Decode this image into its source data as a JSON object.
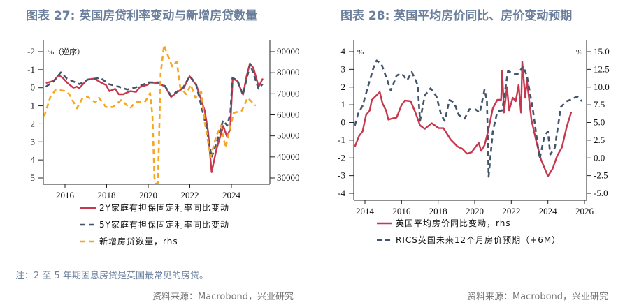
{
  "left": {
    "title": "图表 27: 英国房贷利率变动与新增房贷数量",
    "unit_label": "%（逆序）",
    "note": "注：2 至 5 年期固息房贷是英国最常见的房贷。",
    "source": "资料来源：Macrobond，兴业研究"
  },
  "right": {
    "title": "图表 28: 英国平均房价同比、房价变动预期",
    "unit_left": "%",
    "unit_right": "%",
    "source": "资料来源：Macrobond，兴业研究"
  },
  "chart_data": [
    {
      "type": "line",
      "title": "图表 27: 英国房贷利率变动与新增房贷数量",
      "ylabel": "%（逆序）",
      "y_inverted": true,
      "ylim": [
        -2,
        5
      ],
      "y2lim": [
        30000,
        90000
      ],
      "xlim": [
        2015,
        2025.9
      ],
      "xticks": [
        "2016",
        "2018",
        "2020",
        "2022",
        "2024"
      ],
      "yticks": [
        "-2",
        "-1",
        "0",
        "1",
        "2",
        "3",
        "4",
        "5"
      ],
      "y2ticks": [
        "30000",
        "40000",
        "50000",
        "60000",
        "70000",
        "80000",
        "90000"
      ],
      "legend": "bottom",
      "series": [
        {
          "name": "2Y家庭有担保固定利率同比变动",
          "axis": "left",
          "color": "#c8384d",
          "dash": false,
          "points": [
            [
              2015.08,
              -0.26
            ],
            [
              2015.45,
              -0.38
            ],
            [
              2015.7,
              -0.7
            ],
            [
              2015.9,
              -0.54
            ],
            [
              2016.12,
              -0.26
            ],
            [
              2016.4,
              0
            ],
            [
              2016.57,
              -0.06
            ],
            [
              2016.68,
              0.03
            ],
            [
              2017.07,
              -0.45
            ],
            [
              2017.4,
              -0.51
            ],
            [
              2017.74,
              -0.28
            ],
            [
              2017.97,
              -0.15
            ],
            [
              2018.13,
              0.19
            ],
            [
              2018.41,
              0.06
            ],
            [
              2018.58,
              0.36
            ],
            [
              2018.8,
              0.36
            ],
            [
              2019.14,
              0.19
            ],
            [
              2019.42,
              0.23
            ],
            [
              2019.59,
              -0.03
            ],
            [
              2019.98,
              -0.17
            ],
            [
              2020.09,
              -0.29
            ],
            [
              2020.48,
              -0.26
            ],
            [
              2020.82,
              -0.06
            ],
            [
              2021.1,
              0.51
            ],
            [
              2021.37,
              0.26
            ],
            [
              2021.71,
              0
            ],
            [
              2021.99,
              -0.64
            ],
            [
              2022.32,
              -0.13
            ],
            [
              2022.72,
              1.28
            ],
            [
              2022.88,
              2.44
            ],
            [
              2023.05,
              4.68
            ],
            [
              2023.27,
              3.46
            ],
            [
              2023.61,
              2.12
            ],
            [
              2023.78,
              2.69
            ],
            [
              2023.94,
              2.31
            ],
            [
              2024.06,
              -0.51
            ],
            [
              2024.28,
              -0.38
            ],
            [
              2024.56,
              0.38
            ],
            [
              2024.73,
              -0.64
            ],
            [
              2024.89,
              -1.35
            ],
            [
              2025.06,
              -1.09
            ],
            [
              2025.31,
              -0.06
            ],
            [
              2025.51,
              -0.51
            ]
          ]
        },
        {
          "name": "5Y家庭有担保固定利率同比变动",
          "axis": "left",
          "color": "#44546a",
          "dash": true,
          "points": [
            [
              2015.08,
              -0.06
            ],
            [
              2015.45,
              -0.35
            ],
            [
              2015.8,
              -0.85
            ],
            [
              2016.1,
              -0.5
            ],
            [
              2016.4,
              -0.35
            ],
            [
              2016.7,
              -0.2
            ],
            [
              2017.1,
              -0.45
            ],
            [
              2017.7,
              -0.55
            ],
            [
              2018.1,
              -0.2
            ],
            [
              2018.6,
              -0.05
            ],
            [
              2019.0,
              0.1
            ],
            [
              2019.5,
              -0.05
            ],
            [
              2020.0,
              -0.3
            ],
            [
              2020.5,
              -0.3
            ],
            [
              2020.8,
              -0.1
            ],
            [
              2021.1,
              0.45
            ],
            [
              2021.4,
              0.2
            ],
            [
              2021.7,
              -0.05
            ],
            [
              2022.0,
              -0.65
            ],
            [
              2022.3,
              -0.2
            ],
            [
              2022.8,
              2.2
            ],
            [
              2023.05,
              3.85
            ],
            [
              2023.3,
              3.0
            ],
            [
              2023.6,
              1.8
            ],
            [
              2023.8,
              2.1
            ],
            [
              2023.95,
              1.4
            ],
            [
              2024.05,
              -0.55
            ],
            [
              2024.3,
              -0.4
            ],
            [
              2024.55,
              0.4
            ],
            [
              2024.9,
              -1.3
            ],
            [
              2025.3,
              0.05
            ],
            [
              2025.5,
              -0.2
            ]
          ]
        },
        {
          "name": "新增房贷数量，rhs",
          "axis": "right",
          "color": "#f5a623",
          "dash": true,
          "points": [
            [
              2015.0,
              59300
            ],
            [
              2015.3,
              68700
            ],
            [
              2015.56,
              72000
            ],
            [
              2015.96,
              71400
            ],
            [
              2016.2,
              69800
            ],
            [
              2016.57,
              63100
            ],
            [
              2016.85,
              68100
            ],
            [
              2017.07,
              68700
            ],
            [
              2017.46,
              65900
            ],
            [
              2017.63,
              68100
            ],
            [
              2017.97,
              63700
            ],
            [
              2018.3,
              63700
            ],
            [
              2018.7,
              67000
            ],
            [
              2019.14,
              63100
            ],
            [
              2019.36,
              65900
            ],
            [
              2019.87,
              66500
            ],
            [
              2020.09,
              70300
            ],
            [
              2020.2,
              59800
            ],
            [
              2020.3,
              30000
            ],
            [
              2020.46,
              25000
            ],
            [
              2020.6,
              79700
            ],
            [
              2020.76,
              93000
            ],
            [
              2021.15,
              83000
            ],
            [
              2021.37,
              85200
            ],
            [
              2021.54,
              73100
            ],
            [
              2021.82,
              69800
            ],
            [
              2022.05,
              74200
            ],
            [
              2022.27,
              68100
            ],
            [
              2022.55,
              70900
            ],
            [
              2022.72,
              56500
            ],
            [
              2023.0,
              40000
            ],
            [
              2023.27,
              49900
            ],
            [
              2023.5,
              54900
            ],
            [
              2023.72,
              44400
            ],
            [
              2023.89,
              52100
            ],
            [
              2024.11,
              60900
            ],
            [
              2024.5,
              62000
            ],
            [
              2024.78,
              68100
            ],
            [
              2025.17,
              64300
            ]
          ]
        }
      ]
    },
    {
      "type": "line",
      "title": "图表 28: 英国平均房价同比、房价变动预期",
      "ylabel": "%",
      "y2label": "%",
      "ylim": [
        -4,
        4
      ],
      "y2lim": [
        -5,
        15
      ],
      "xlim": [
        2013.4,
        2026.1
      ],
      "xticks": [
        "2014",
        "2016",
        "2018",
        "2020",
        "2022",
        "2024",
        "2026"
      ],
      "yticks": [
        "-4",
        "-3",
        "-2",
        "-1",
        "0",
        "1",
        "2",
        "3",
        "4"
      ],
      "y2ticks": [
        "-5.0",
        "-2.5",
        "0.0",
        "2.5",
        "5.0",
        "7.5",
        "10.0",
        "12.5",
        "15.0"
      ],
      "legend": "bottom",
      "series": [
        {
          "name": "英国平均房价同比变动，rhs",
          "axis": "right",
          "color": "#c8384d",
          "dash": false,
          "points": [
            [
              2013.45,
              1.6
            ],
            [
              2013.68,
              3.1
            ],
            [
              2013.87,
              3.75
            ],
            [
              2014.06,
              6.05
            ],
            [
              2014.26,
              6.7
            ],
            [
              2014.38,
              8.2
            ],
            [
              2014.58,
              8.7
            ],
            [
              2014.81,
              9.3
            ],
            [
              2014.96,
              7.7
            ],
            [
              2015.15,
              6.7
            ],
            [
              2015.28,
              5.4
            ],
            [
              2015.54,
              5.6
            ],
            [
              2015.73,
              5.7
            ],
            [
              2015.99,
              7.4
            ],
            [
              2016.18,
              8.1
            ],
            [
              2016.5,
              8.0
            ],
            [
              2016.76,
              6.4
            ],
            [
              2017.01,
              4.6
            ],
            [
              2017.27,
              4.1
            ],
            [
              2017.65,
              4.9
            ],
            [
              2018.04,
              4.2
            ],
            [
              2018.29,
              4.2
            ],
            [
              2018.68,
              2.6
            ],
            [
              2019.06,
              1.6
            ],
            [
              2019.32,
              1.3
            ],
            [
              2019.58,
              0.6
            ],
            [
              2019.83,
              0.8
            ],
            [
              2020.03,
              1.5
            ],
            [
              2020.22,
              2.1
            ],
            [
              2020.35,
              1.0
            ],
            [
              2020.54,
              1.8
            ],
            [
              2020.73,
              3.75
            ],
            [
              2020.99,
              7.0
            ],
            [
              2021.24,
              8.2
            ],
            [
              2021.44,
              8.2
            ],
            [
              2021.5,
              12.3
            ],
            [
              2021.6,
              6.4
            ],
            [
              2021.76,
              10.0
            ],
            [
              2021.88,
              6.7
            ],
            [
              2022.08,
              8.5
            ],
            [
              2022.24,
              8.0
            ],
            [
              2022.4,
              10.3
            ],
            [
              2022.53,
              6.4
            ],
            [
              2022.6,
              13.6
            ],
            [
              2022.76,
              8.5
            ],
            [
              2022.85,
              11.0
            ],
            [
              2023.1,
              5.4
            ],
            [
              2023.36,
              2.4
            ],
            [
              2023.62,
              -0.2
            ],
            [
              2024.0,
              -2.6
            ],
            [
              2024.26,
              -1.5
            ],
            [
              2024.51,
              0.3
            ],
            [
              2024.77,
              1.5
            ],
            [
              2025.03,
              4.4
            ],
            [
              2025.28,
              6.5
            ]
          ]
        },
        {
          "name": "RICS英国未来12个月房价预期（+6M）",
          "axis": "left",
          "color": "#44546a",
          "dash": true,
          "points": [
            [
              2013.45,
              -0.17
            ],
            [
              2013.62,
              0.49
            ],
            [
              2013.87,
              0.94
            ],
            [
              2014.19,
              2.12
            ],
            [
              2014.45,
              3.04
            ],
            [
              2014.64,
              3.5
            ],
            [
              2014.9,
              3.3
            ],
            [
              2015.22,
              2.39
            ],
            [
              2015.41,
              1.8
            ],
            [
              2015.73,
              2.65
            ],
            [
              2015.99,
              2.78
            ],
            [
              2016.31,
              2.39
            ],
            [
              2016.56,
              2.85
            ],
            [
              2016.88,
              2.12
            ],
            [
              2017.01,
              0.09
            ],
            [
              2017.27,
              1.53
            ],
            [
              2017.59,
              1.93
            ],
            [
              2017.91,
              1.47
            ],
            [
              2018.17,
              0.42
            ],
            [
              2018.36,
              0.09
            ],
            [
              2018.62,
              1.27
            ],
            [
              2018.87,
              1.14
            ],
            [
              2019.13,
              0.42
            ],
            [
              2019.45,
              0.22
            ],
            [
              2019.71,
              0.75
            ],
            [
              2020.03,
              0.75
            ],
            [
              2020.28,
              0.55
            ],
            [
              2020.54,
              1.86
            ],
            [
              2020.67,
              1.2
            ],
            [
              2020.76,
              -3.06
            ],
            [
              2020.99,
              -0.5
            ],
            [
              2021.24,
              0.62
            ],
            [
              2021.5,
              0.68
            ],
            [
              2021.82,
              2.91
            ],
            [
              2022.08,
              2.78
            ],
            [
              2022.33,
              2.71
            ],
            [
              2022.65,
              3.17
            ],
            [
              2022.85,
              2.65
            ],
            [
              2023.17,
              0.81
            ],
            [
              2023.55,
              -2.07
            ],
            [
              2023.81,
              -0.76
            ],
            [
              2024.0,
              -0.5
            ],
            [
              2024.13,
              -1.81
            ],
            [
              2024.38,
              -1.42
            ],
            [
              2024.71,
              0.88
            ],
            [
              2025.03,
              1.2
            ],
            [
              2025.35,
              1.34
            ],
            [
              2025.6,
              1.47
            ],
            [
              2025.86,
              1.2
            ]
          ]
        }
      ]
    }
  ]
}
